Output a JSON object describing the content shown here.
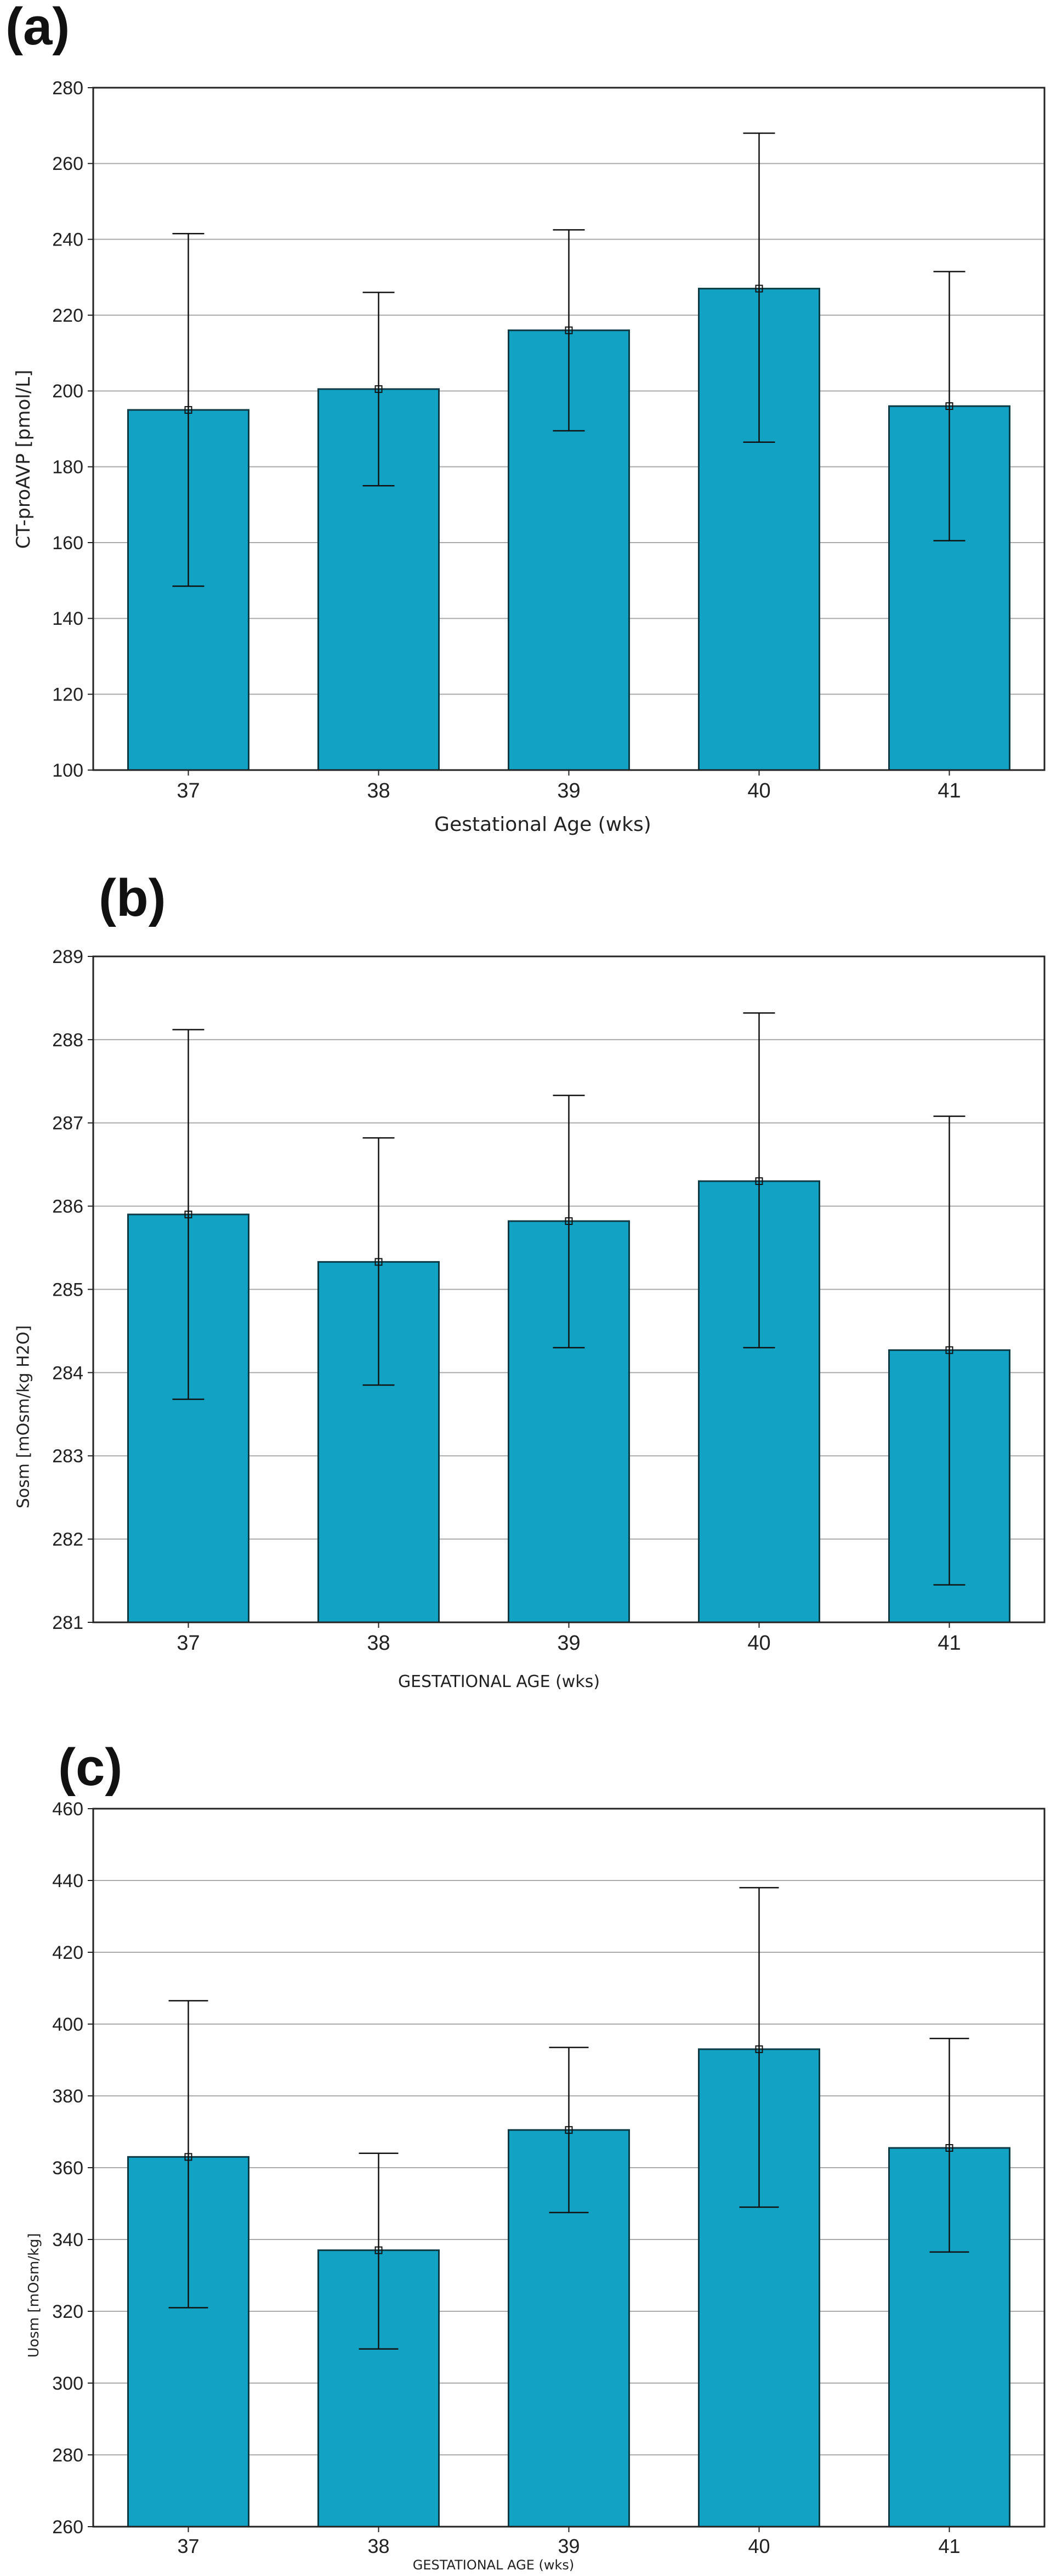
{
  "bar_color": "#12a3c4",
  "bar_stroke": "#0d3a45",
  "grid_color": "#aaaaaa",
  "chart_data": [
    {
      "type": "bar",
      "panel_label": "(a)",
      "title": "",
      "xlabel": "Gestational Age (wks)",
      "ylabel": "CT-proAVP [pmol/L]",
      "categories": [
        "37",
        "38",
        "39",
        "40",
        "41"
      ],
      "values": [
        195,
        200.5,
        216,
        227,
        196
      ],
      "error_low": [
        148.5,
        175,
        189.5,
        186.5,
        160.5
      ],
      "error_high": [
        241.5,
        226,
        242.5,
        268,
        231.5
      ],
      "ylim": [
        100,
        280
      ],
      "yticks": [
        "100",
        "120",
        "140",
        "160",
        "180",
        "200",
        "220",
        "240",
        "260",
        "280"
      ],
      "grid": true
    },
    {
      "type": "bar",
      "panel_label": "(b)",
      "title": "",
      "xlabel": "GESTATIONAL AGE (wks)",
      "ylabel": "Sosm [mOsm/kg H2O]",
      "categories": [
        "37",
        "38",
        "39",
        "40",
        "41"
      ],
      "values": [
        285.9,
        285.33,
        285.82,
        286.3,
        284.27
      ],
      "error_low": [
        283.68,
        283.85,
        284.3,
        284.3,
        281.45
      ],
      "error_high": [
        288.12,
        286.82,
        287.33,
        288.32,
        287.08
      ],
      "ylim": [
        281,
        289
      ],
      "yticks": [
        "281",
        "282",
        "283",
        "284",
        "285",
        "286",
        "287",
        "288",
        "289"
      ],
      "grid": true
    },
    {
      "type": "bar",
      "panel_label": "(c)",
      "title": "",
      "xlabel": "GESTATIONAL AGE (wks)",
      "ylabel": "Uosm [mOsm/kg]",
      "categories": [
        "37",
        "38",
        "39",
        "40",
        "41"
      ],
      "values": [
        363,
        337,
        370.5,
        393,
        365.5
      ],
      "error_low": [
        321,
        309.5,
        347.5,
        349,
        336.5
      ],
      "error_high": [
        406.5,
        364,
        393.5,
        438,
        396
      ],
      "ylim": [
        260,
        460
      ],
      "yticks": [
        "260",
        "280",
        "300",
        "320",
        "340",
        "360",
        "380",
        "400",
        "420",
        "440",
        "460"
      ],
      "grid": true
    }
  ]
}
